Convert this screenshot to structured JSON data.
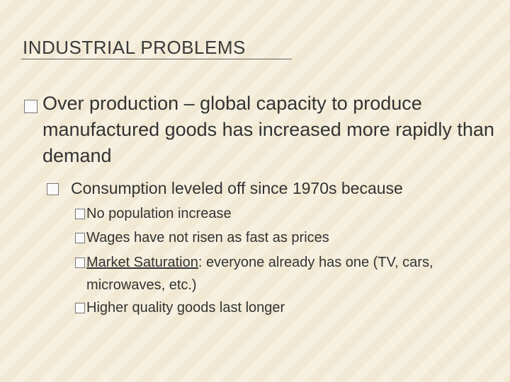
{
  "title": "INDUSTRIAL PROBLEMS",
  "bullets": [
    {
      "text": "Over production – global capacity to produce manufactured goods has increased more rapidly than demand",
      "children": [
        {
          "text": "Consumption leveled off since 1970s because",
          "children": [
            {
              "text": "No population increase"
            },
            {
              "text": "Wages have not risen as fast as prices"
            },
            {
              "term": "Market Saturation",
              "text": ": everyone already has one (TV, cars, microwaves, etc.)"
            },
            {
              "text": "Higher quality goods last longer"
            }
          ]
        }
      ]
    }
  ]
}
